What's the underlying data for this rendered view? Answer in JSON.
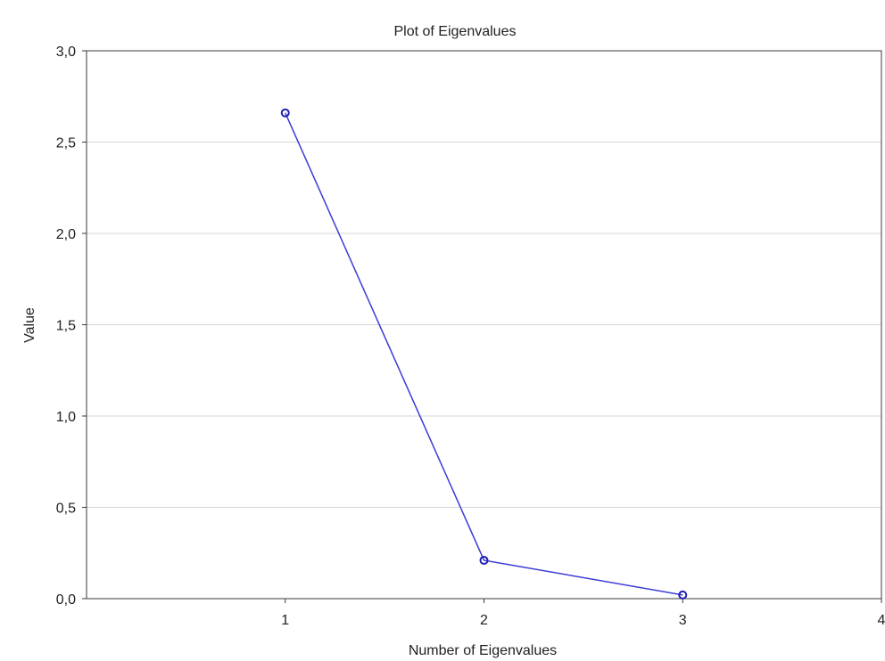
{
  "chart_data": {
    "type": "line",
    "title": "Plot of Eigenvalues",
    "xlabel": "Number of Eigenvalues",
    "ylabel": "Value",
    "xlim": [
      0,
      4
    ],
    "ylim": [
      0,
      3
    ],
    "x_ticks": [
      {
        "value": 1,
        "label": "1"
      },
      {
        "value": 2,
        "label": "2"
      },
      {
        "value": 3,
        "label": "3"
      },
      {
        "value": 4,
        "label": "4"
      }
    ],
    "y_ticks": [
      {
        "value": 0.0,
        "label": "0,0"
      },
      {
        "value": 0.5,
        "label": "0,5"
      },
      {
        "value": 1.0,
        "label": "1,0"
      },
      {
        "value": 1.5,
        "label": "1,5"
      },
      {
        "value": 2.0,
        "label": "2,0"
      },
      {
        "value": 2.5,
        "label": "2,5"
      },
      {
        "value": 3.0,
        "label": "3,0"
      }
    ],
    "grid": "horizontal",
    "series": [
      {
        "x": [
          1,
          2,
          3
        ],
        "values": [
          2.66,
          0.21,
          0.02
        ],
        "color": "#3b3bd6",
        "marker_color": "#2020b0"
      }
    ]
  }
}
